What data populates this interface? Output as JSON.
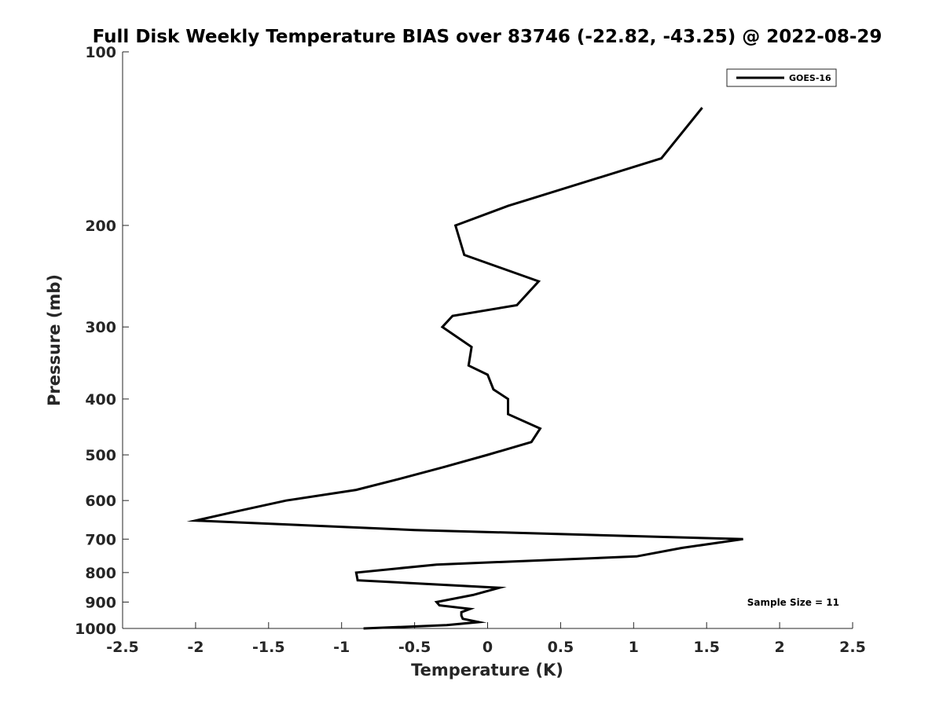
{
  "chart_data": {
    "type": "line",
    "title": "Full Disk Weekly Temperature BIAS over 83746 (-22.82, -43.25) @ 2022-08-29",
    "xlabel": "Temperature (K)",
    "ylabel": "Pressure (mb)",
    "xlim": [
      -2.5,
      2.5
    ],
    "ylim": [
      1000,
      100
    ],
    "yscale": "log",
    "xticks": [
      -2.5,
      -2,
      -1.5,
      -1,
      -0.5,
      0,
      0.5,
      1,
      1.5,
      2,
      2.5
    ],
    "xtick_labels": [
      "-2.5",
      "-2",
      "-1.5",
      "-1",
      "-0.5",
      "0",
      "0.5",
      "1",
      "1.5",
      "2",
      "2.5"
    ],
    "yticks": [
      100,
      200,
      300,
      400,
      500,
      600,
      700,
      800,
      900,
      1000
    ],
    "ytick_labels": [
      "100",
      "200",
      "300",
      "400",
      "500",
      "600",
      "700",
      "800",
      "900",
      "1000"
    ],
    "grid": false,
    "legend_position": "top-right",
    "series": [
      {
        "name": "GOES-16",
        "color": "#000000",
        "points": [
          {
            "x": 1.47,
            "p": 125
          },
          {
            "x": 1.19,
            "p": 153
          },
          {
            "x": 0.14,
            "p": 185
          },
          {
            "x": -0.22,
            "p": 200
          },
          {
            "x": -0.16,
            "p": 225
          },
          {
            "x": 0.35,
            "p": 250
          },
          {
            "x": 0.2,
            "p": 275
          },
          {
            "x": -0.24,
            "p": 287
          },
          {
            "x": -0.31,
            "p": 300
          },
          {
            "x": -0.11,
            "p": 325
          },
          {
            "x": -0.13,
            "p": 350
          },
          {
            "x": 0.0,
            "p": 363
          },
          {
            "x": 0.04,
            "p": 385
          },
          {
            "x": 0.14,
            "p": 400
          },
          {
            "x": 0.14,
            "p": 425
          },
          {
            "x": 0.36,
            "p": 450
          },
          {
            "x": 0.3,
            "p": 475
          },
          {
            "x": 0.0,
            "p": 500
          },
          {
            "x": -0.3,
            "p": 525
          },
          {
            "x": -0.6,
            "p": 550
          },
          {
            "x": -0.9,
            "p": 575
          },
          {
            "x": -1.38,
            "p": 600
          },
          {
            "x": -1.7,
            "p": 625
          },
          {
            "x": -2.0,
            "p": 650
          },
          {
            "x": -0.5,
            "p": 675
          },
          {
            "x": 1.75,
            "p": 700
          },
          {
            "x": 1.33,
            "p": 725
          },
          {
            "x": 1.02,
            "p": 750
          },
          {
            "x": -0.35,
            "p": 775
          },
          {
            "x": -0.9,
            "p": 800
          },
          {
            "x": -0.89,
            "p": 825
          },
          {
            "x": 0.08,
            "p": 850
          },
          {
            "x": -0.1,
            "p": 875
          },
          {
            "x": -0.35,
            "p": 900
          },
          {
            "x": -0.33,
            "p": 912
          },
          {
            "x": -0.12,
            "p": 925
          },
          {
            "x": -0.18,
            "p": 937
          },
          {
            "x": -0.18,
            "p": 950
          },
          {
            "x": -0.17,
            "p": 962
          },
          {
            "x": -0.06,
            "p": 975
          },
          {
            "x": -0.28,
            "p": 987
          },
          {
            "x": -0.85,
            "p": 1000
          }
        ]
      }
    ],
    "annotation": "Sample Size = 11"
  }
}
